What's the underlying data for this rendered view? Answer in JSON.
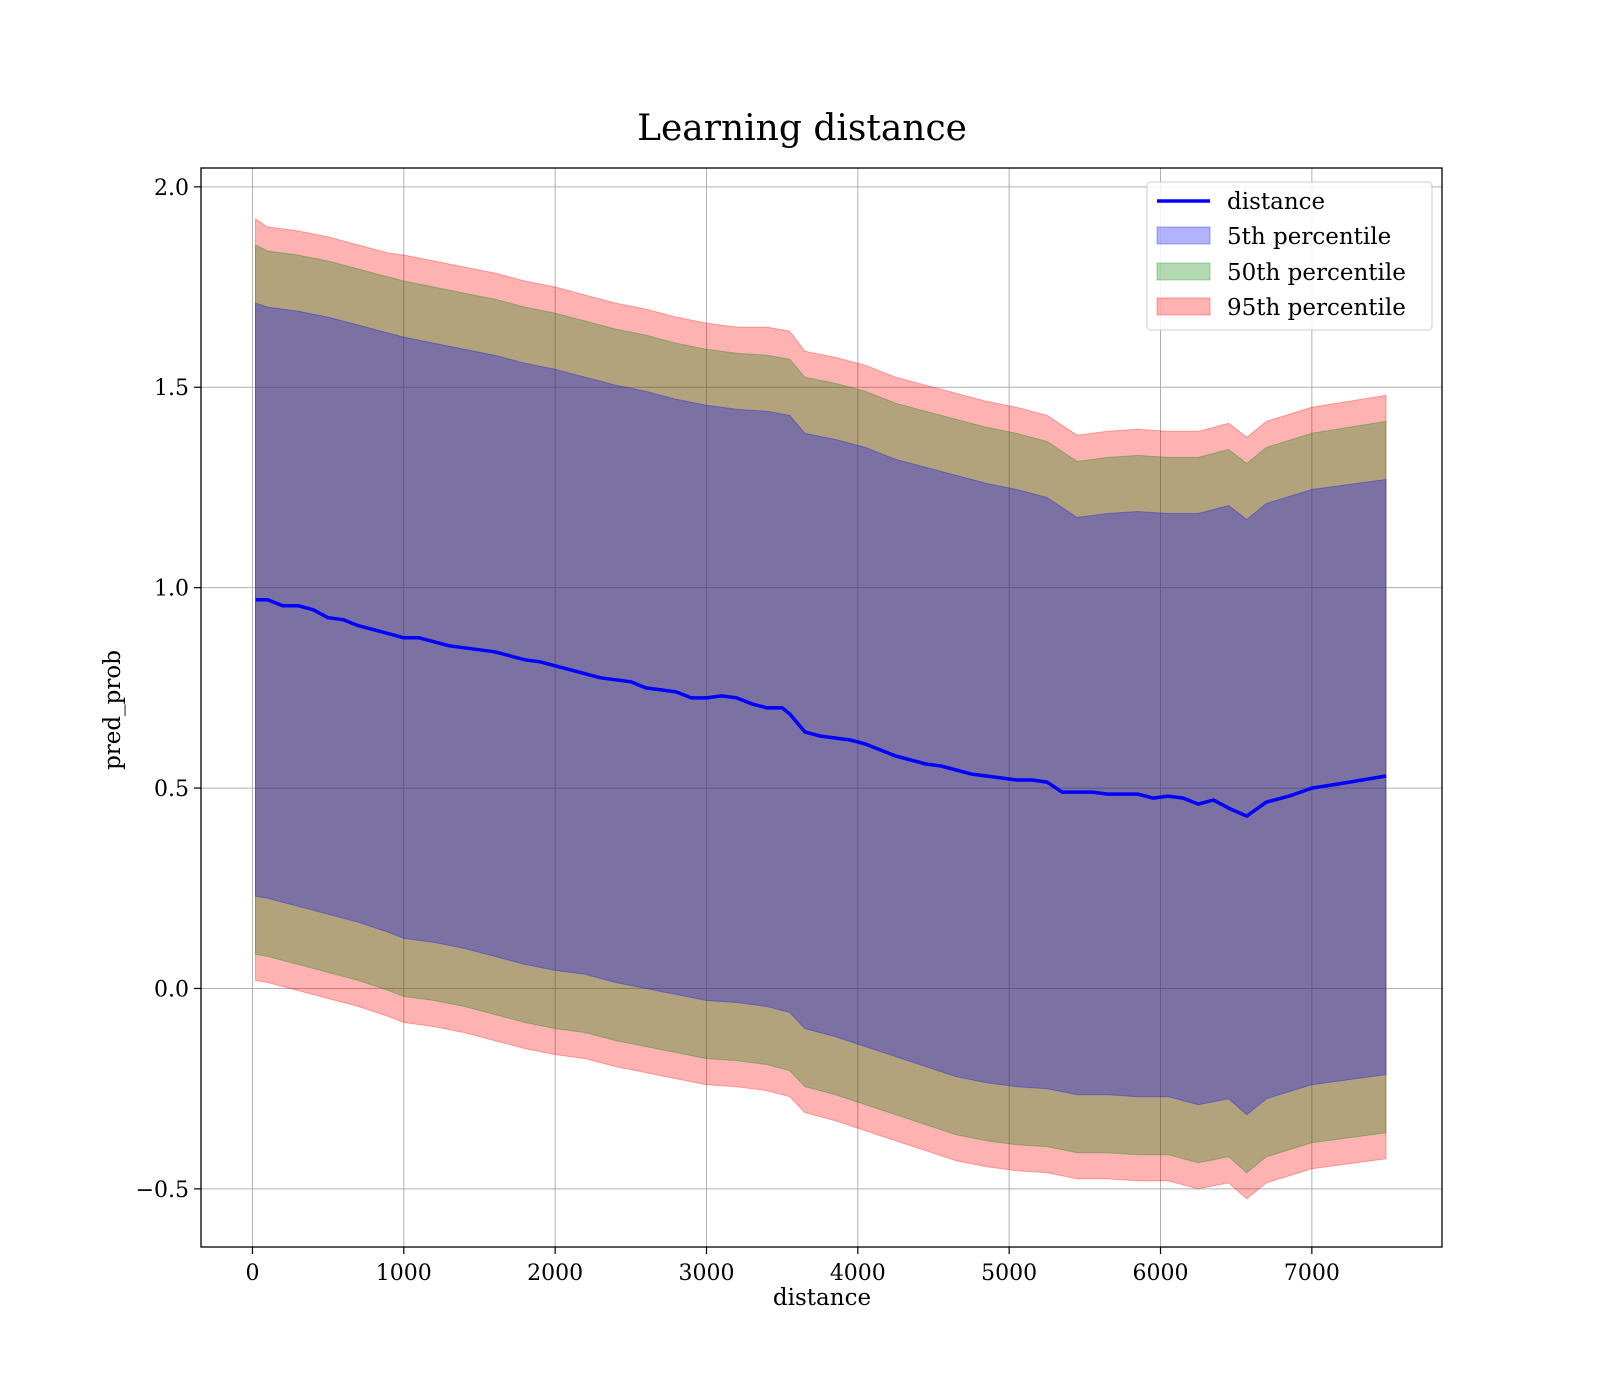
{
  "chart_data": {
    "type": "area",
    "title": "Learning distance",
    "xlabel": "distance",
    "ylabel": "pred_prob",
    "xlim": [
      -340,
      7860
    ],
    "ylim": [
      -0.645,
      2.047
    ],
    "xticks": [
      0,
      1000,
      2000,
      3000,
      4000,
      5000,
      6000,
      7000
    ],
    "yticks": [
      -0.5,
      0.0,
      0.5,
      1.0,
      1.5,
      2.0
    ],
    "xtick_labels": [
      "0",
      "1000",
      "2000",
      "3000",
      "4000",
      "5000",
      "6000",
      "7000"
    ],
    "ytick_labels": [
      "−0.5",
      "0.0",
      "0.5",
      "1.0",
      "1.5",
      "2.0"
    ],
    "grid": true,
    "legend_position": "top-right",
    "line": {
      "name": "distance",
      "color": "#0000ff",
      "x": [
        20,
        100,
        200,
        300,
        400,
        500,
        600,
        700,
        800,
        900,
        1000,
        1100,
        1200,
        1300,
        1400,
        1500,
        1600,
        1700,
        1800,
        1900,
        2000,
        2100,
        2200,
        2300,
        2400,
        2500,
        2600,
        2700,
        2800,
        2900,
        3000,
        3100,
        3200,
        3300,
        3400,
        3500,
        3550,
        3650,
        3750,
        3850,
        3950,
        4050,
        4150,
        4250,
        4350,
        4450,
        4550,
        4650,
        4750,
        4850,
        4950,
        5050,
        5150,
        5250,
        5350,
        5450,
        5550,
        5650,
        5750,
        5850,
        5950,
        6050,
        6150,
        6250,
        6350,
        6450,
        6570,
        6700,
        6850,
        7000,
        7250,
        7490
      ],
      "y": [
        0.97,
        0.97,
        0.955,
        0.955,
        0.945,
        0.925,
        0.92,
        0.905,
        0.895,
        0.885,
        0.875,
        0.875,
        0.865,
        0.855,
        0.85,
        0.845,
        0.84,
        0.83,
        0.82,
        0.815,
        0.805,
        0.795,
        0.785,
        0.775,
        0.77,
        0.765,
        0.75,
        0.745,
        0.74,
        0.725,
        0.725,
        0.73,
        0.725,
        0.71,
        0.7,
        0.7,
        0.685,
        0.64,
        0.63,
        0.625,
        0.62,
        0.61,
        0.595,
        0.58,
        0.57,
        0.56,
        0.555,
        0.545,
        0.535,
        0.53,
        0.525,
        0.52,
        0.52,
        0.515,
        0.49,
        0.49,
        0.49,
        0.485,
        0.485,
        0.485,
        0.475,
        0.48,
        0.475,
        0.46,
        0.47,
        0.45,
        0.43,
        0.465,
        0.48,
        0.5,
        0.515,
        0.53
      ]
    },
    "bands": [
      {
        "name": "95th percentile",
        "color": "#ff0000",
        "opacity": 0.3,
        "x": [
          20,
          100,
          200,
          300,
          500,
          700,
          900,
          1000,
          1200,
          1400,
          1600,
          1800,
          2000,
          2200,
          2400,
          2600,
          2800,
          3000,
          3200,
          3400,
          3550,
          3650,
          3850,
          4050,
          4250,
          4450,
          4650,
          4850,
          5050,
          5250,
          5450,
          5650,
          5850,
          6050,
          6250,
          6450,
          6570,
          6700,
          7000,
          7490
        ],
        "upper": [
          1.92,
          1.9,
          1.895,
          1.89,
          1.875,
          1.855,
          1.835,
          1.83,
          1.815,
          1.8,
          1.785,
          1.765,
          1.75,
          1.73,
          1.71,
          1.695,
          1.675,
          1.66,
          1.65,
          1.65,
          1.64,
          1.59,
          1.575,
          1.555,
          1.525,
          1.505,
          1.485,
          1.465,
          1.45,
          1.43,
          1.38,
          1.39,
          1.395,
          1.39,
          1.39,
          1.41,
          1.375,
          1.415,
          1.45,
          1.48
        ],
        "lower": [
          0.02,
          0.015,
          0.005,
          -0.005,
          -0.025,
          -0.045,
          -0.07,
          -0.085,
          -0.095,
          -0.11,
          -0.13,
          -0.15,
          -0.165,
          -0.175,
          -0.195,
          -0.21,
          -0.225,
          -0.24,
          -0.245,
          -0.255,
          -0.27,
          -0.31,
          -0.33,
          -0.355,
          -0.38,
          -0.405,
          -0.43,
          -0.445,
          -0.455,
          -0.46,
          -0.475,
          -0.475,
          -0.48,
          -0.48,
          -0.5,
          -0.485,
          -0.525,
          -0.485,
          -0.45,
          -0.425
        ]
      },
      {
        "name": "50th percentile",
        "color": "#008000",
        "opacity": 0.3,
        "x": [
          20,
          100,
          200,
          300,
          500,
          700,
          900,
          1000,
          1200,
          1400,
          1600,
          1800,
          2000,
          2200,
          2400,
          2600,
          2800,
          3000,
          3200,
          3400,
          3550,
          3650,
          3850,
          4050,
          4250,
          4450,
          4650,
          4850,
          5050,
          5250,
          5450,
          5650,
          5850,
          6050,
          6250,
          6450,
          6570,
          6700,
          7000,
          7490
        ],
        "upper": [
          1.855,
          1.84,
          1.835,
          1.83,
          1.815,
          1.795,
          1.775,
          1.765,
          1.75,
          1.735,
          1.72,
          1.7,
          1.685,
          1.665,
          1.645,
          1.63,
          1.61,
          1.595,
          1.585,
          1.58,
          1.57,
          1.525,
          1.51,
          1.49,
          1.46,
          1.44,
          1.42,
          1.4,
          1.385,
          1.365,
          1.315,
          1.325,
          1.33,
          1.325,
          1.325,
          1.345,
          1.31,
          1.35,
          1.385,
          1.415
        ],
        "lower": [
          0.085,
          0.08,
          0.07,
          0.06,
          0.04,
          0.02,
          -0.005,
          -0.02,
          -0.03,
          -0.045,
          -0.065,
          -0.085,
          -0.1,
          -0.11,
          -0.13,
          -0.145,
          -0.16,
          -0.175,
          -0.18,
          -0.19,
          -0.205,
          -0.245,
          -0.265,
          -0.29,
          -0.315,
          -0.34,
          -0.365,
          -0.38,
          -0.39,
          -0.395,
          -0.41,
          -0.41,
          -0.415,
          -0.415,
          -0.435,
          -0.42,
          -0.46,
          -0.42,
          -0.385,
          -0.36
        ]
      },
      {
        "name": "5th percentile",
        "color": "#0000ff",
        "opacity": 0.3,
        "x": [
          20,
          100,
          200,
          300,
          500,
          700,
          900,
          1000,
          1200,
          1400,
          1600,
          1800,
          2000,
          2200,
          2400,
          2600,
          2800,
          3000,
          3200,
          3400,
          3550,
          3650,
          3850,
          4050,
          4250,
          4450,
          4650,
          4850,
          5050,
          5250,
          5450,
          5650,
          5850,
          6050,
          6250,
          6450,
          6570,
          6700,
          7000,
          7490
        ],
        "upper": [
          1.71,
          1.7,
          1.695,
          1.69,
          1.675,
          1.655,
          1.635,
          1.625,
          1.61,
          1.595,
          1.58,
          1.56,
          1.545,
          1.525,
          1.505,
          1.49,
          1.47,
          1.455,
          1.445,
          1.44,
          1.43,
          1.385,
          1.37,
          1.35,
          1.32,
          1.3,
          1.28,
          1.26,
          1.245,
          1.225,
          1.175,
          1.185,
          1.19,
          1.185,
          1.185,
          1.205,
          1.17,
          1.21,
          1.245,
          1.27
        ],
        "lower": [
          0.23,
          0.225,
          0.215,
          0.205,
          0.185,
          0.165,
          0.14,
          0.125,
          0.115,
          0.1,
          0.08,
          0.06,
          0.045,
          0.035,
          0.015,
          0.0,
          -0.015,
          -0.03,
          -0.035,
          -0.045,
          -0.06,
          -0.1,
          -0.12,
          -0.145,
          -0.17,
          -0.195,
          -0.22,
          -0.235,
          -0.245,
          -0.25,
          -0.265,
          -0.265,
          -0.27,
          -0.27,
          -0.29,
          -0.275,
          -0.315,
          -0.275,
          -0.24,
          -0.215
        ]
      }
    ],
    "legend": [
      "distance",
      "5th percentile",
      "50th percentile",
      "95th percentile"
    ]
  },
  "colors": {
    "line": "#0000ff",
    "grid": "#b0b0b0",
    "axes": "#000000"
  }
}
